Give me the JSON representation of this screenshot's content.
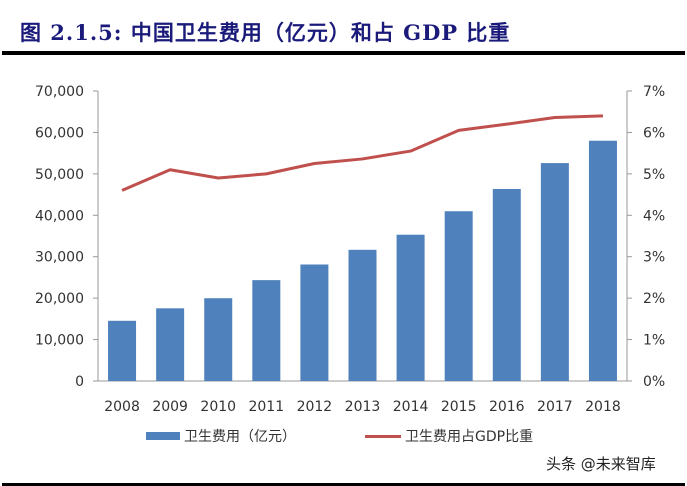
{
  "title": "图 2.1.5:  中国卫生费用（亿元）和占 GDP 比重",
  "watermark": "头条 @未来智库",
  "colors": {
    "bar": "#4f81bd",
    "line": "#c0504d",
    "title": "#1a1a7a"
  },
  "chart_data": {
    "type": "bar+line",
    "categories": [
      "2008",
      "2009",
      "2010",
      "2011",
      "2012",
      "2013",
      "2014",
      "2015",
      "2016",
      "2017",
      "2018"
    ],
    "series": [
      {
        "name": "卫生费用（亿元）",
        "type": "bar",
        "axis": "left",
        "values": [
          14535,
          17542,
          19980,
          24346,
          28119,
          31669,
          35312,
          40975,
          46345,
          52598,
          57998
        ]
      },
      {
        "name": "卫生费用占GDP比重",
        "type": "line",
        "axis": "right",
        "values": [
          4.6,
          5.1,
          4.9,
          5.0,
          5.25,
          5.36,
          5.55,
          6.05,
          6.2,
          6.36,
          6.4
        ]
      }
    ],
    "y_left": {
      "ylim": [
        0,
        70000
      ],
      "ticks": [
        "0",
        "10,000",
        "20,000",
        "30,000",
        "40,000",
        "50,000",
        "60,000",
        "70,000"
      ]
    },
    "y_right": {
      "ylim": [
        0,
        7
      ],
      "ticks": [
        "0%",
        "1%",
        "2%",
        "3%",
        "4%",
        "5%",
        "6%",
        "7%"
      ]
    },
    "grid": false,
    "legend_position": "bottom"
  }
}
